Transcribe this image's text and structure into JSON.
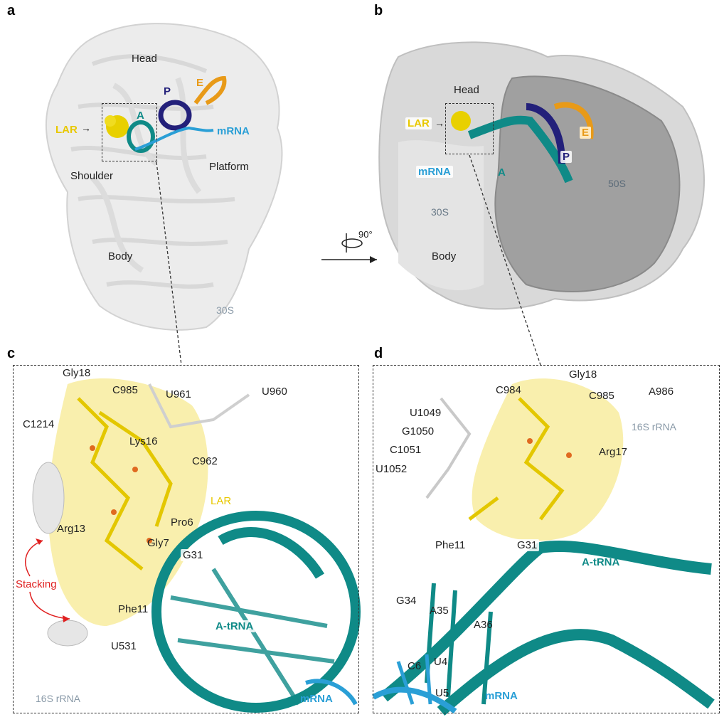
{
  "panels": {
    "a": {
      "letter": "a",
      "labels": {
        "head": "Head",
        "shoulder": "Shoulder",
        "platform": "Platform",
        "body": "Body",
        "subunit": "30S",
        "lar": "LAR",
        "a_site": "A",
        "p_site": "P",
        "e_site": "E",
        "mrna": "mRNA"
      }
    },
    "b": {
      "letter": "b",
      "labels": {
        "head": "Head",
        "lar": "LAR",
        "mrna": "mRNA",
        "a_site": "A",
        "p_site": "P",
        "e_site": "E",
        "small_subunit": "30S",
        "large_subunit": "50S",
        "body": "Body"
      },
      "rotation": "90°"
    },
    "c": {
      "letter": "c",
      "residues": {
        "gly18": "Gly18",
        "c985": "C985",
        "u961": "U961",
        "u960": "U960",
        "c1214": "C1214",
        "lys16": "Lys16",
        "c962": "C962",
        "lar": "LAR",
        "pro6": "Pro6",
        "arg13": "Arg13",
        "gly7": "Gly7",
        "g31": "G31",
        "stacking": "Stacking",
        "phe11": "Phe11",
        "atrna": "A-tRNA",
        "u531": "U531",
        "rrna": "16S rRNA",
        "mrna": "mRNA"
      }
    },
    "d": {
      "letter": "d",
      "residues": {
        "c984": "C984",
        "gly18": "Gly18",
        "c985": "C985",
        "a986": "A986",
        "u1049": "U1049",
        "g1050": "G1050",
        "rrna": "16S rRNA",
        "c1051": "C1051",
        "arg17": "Arg17",
        "u1052": "U1052",
        "phe11": "Phe11",
        "g31": "G31",
        "atrna": "A-tRNA",
        "g34": "G34",
        "a35": "A35",
        "a36": "A36",
        "c6": "C6",
        "u4": "U4",
        "u5": "U5",
        "mrna": "mRNA"
      }
    }
  },
  "colors": {
    "lar": "#e8d000",
    "atrna": "#0f8a87",
    "ptrna": "#23207a",
    "etrna": "#e89a18",
    "mrna": "#2a9fd6",
    "stacking": "#e02020",
    "ribosome_light": "#e6e6e6",
    "ribosome_dark": "#9a9a9a"
  }
}
